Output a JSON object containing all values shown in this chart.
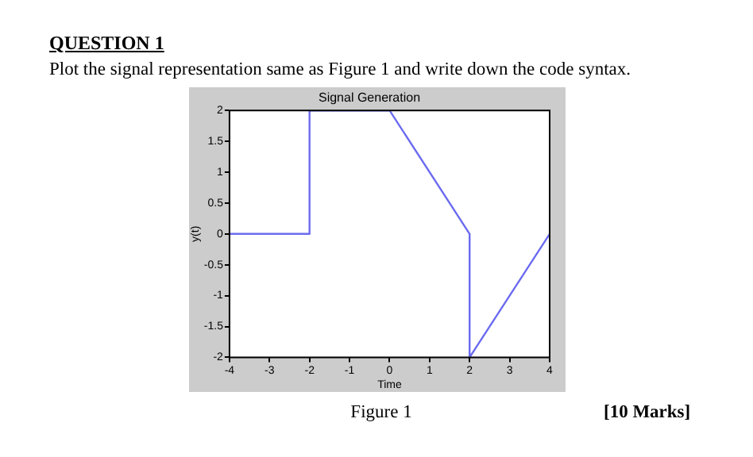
{
  "chart_data": {
    "type": "line",
    "title": "Signal Generation",
    "xlabel": "Time",
    "ylabel": "y(t)",
    "annotations": [
      "QUESTION 1",
      "Plot the signal representation same as Figure 1 and write down the code syntax.",
      "Figure 1",
      "[10 Marks]"
    ],
    "x": [
      -4,
      -2,
      -2,
      0,
      2,
      2,
      4
    ],
    "series": [
      {
        "color": "#6b6bf0",
        "values": [
          0,
          0,
          2,
          2,
          0,
          -2,
          0
        ]
      }
    ],
    "xlim": [
      -4,
      4
    ],
    "xticks": [
      -4,
      -3,
      -2,
      -1,
      0,
      1,
      2,
      3,
      4
    ],
    "ylim": [
      -2,
      2
    ],
    "yticks": [
      -2,
      -1.5,
      -1,
      -0.5,
      0,
      0.5,
      1,
      1.5,
      2
    ],
    "grid": false,
    "legend": false,
    "marker": "none",
    "line_style": "solid"
  }
}
